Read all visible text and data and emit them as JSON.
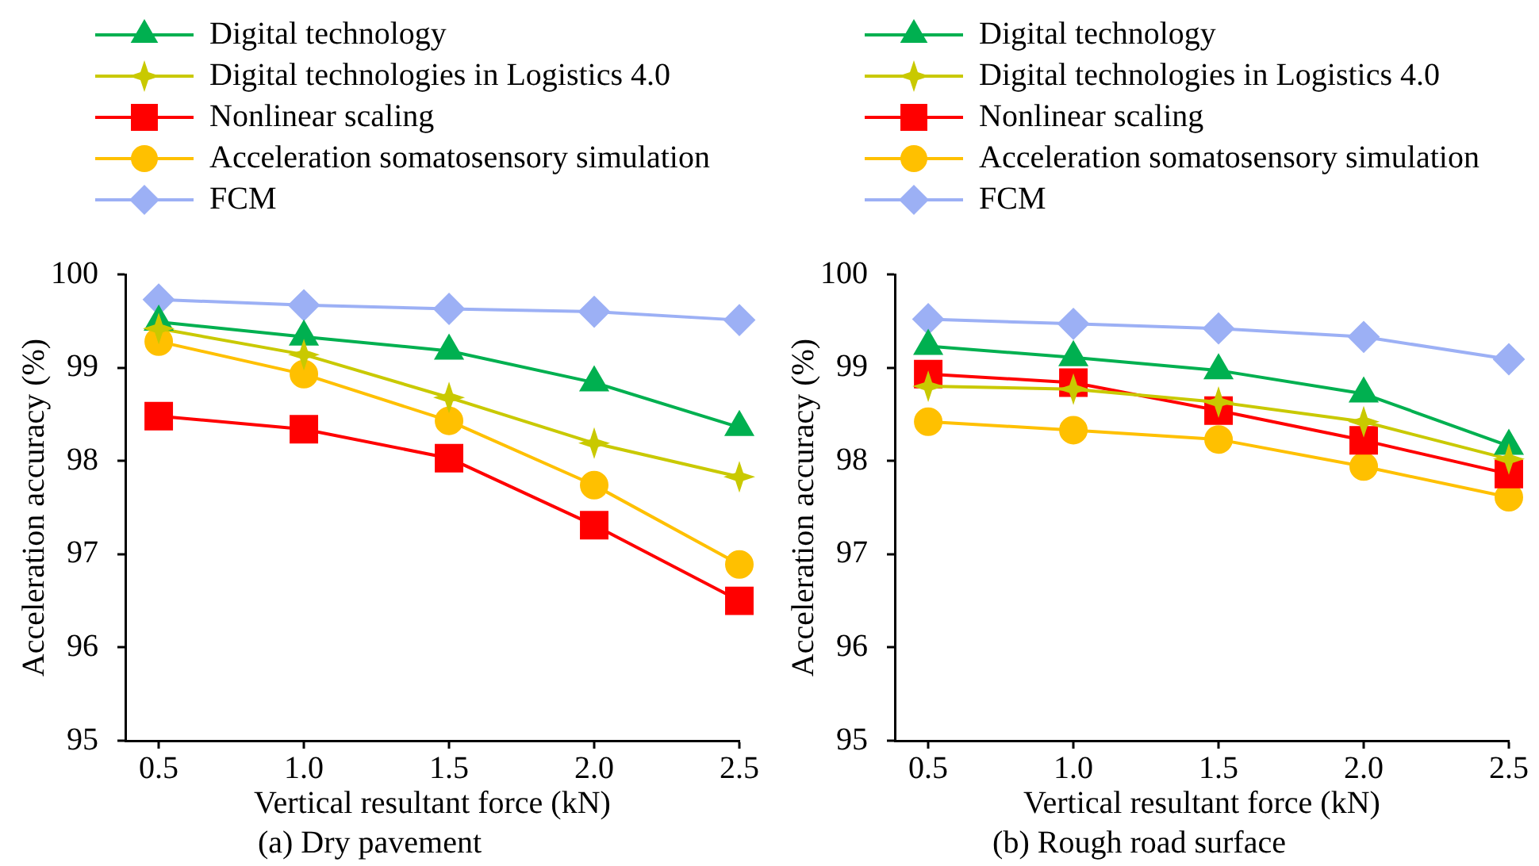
{
  "chart_data": [
    {
      "type": "line",
      "title": "(a) Dry pavement",
      "xlabel": "Vertical resultant force (kN)",
      "ylabel": "Acceleration accuracy (%)",
      "categories": [
        "0.5",
        "1.0",
        "1.5",
        "2.0",
        "2.5"
      ],
      "ylim": [
        95,
        100
      ],
      "yticks": [
        95,
        96,
        97,
        98,
        99,
        100
      ],
      "grid": false,
      "legend": "top left",
      "series": [
        {
          "name": "Digital technology",
          "color": "#00b050",
          "marker": "triangle",
          "values": [
            99.49,
            99.33,
            99.18,
            98.84,
            98.36
          ]
        },
        {
          "name": "Digital technologies in Logistics 4.0",
          "color": "#c9c900",
          "marker": "star",
          "values": [
            99.42,
            99.14,
            98.68,
            98.19,
            97.83
          ]
        },
        {
          "name": "Nonlinear scaling",
          "color": "#ff0000",
          "marker": "square",
          "values": [
            98.48,
            98.34,
            98.03,
            97.31,
            96.5
          ]
        },
        {
          "name": "Acceleration somatosensory simulation",
          "color": "#ffc000",
          "marker": "circle",
          "values": [
            99.28,
            98.93,
            98.43,
            97.74,
            96.89
          ]
        },
        {
          "name": "FCM",
          "color": "#9cb0f5",
          "marker": "diamond",
          "values": [
            99.73,
            99.67,
            99.63,
            99.6,
            99.51
          ]
        }
      ]
    },
    {
      "type": "line",
      "title": "(b) Rough road surface",
      "xlabel": "Vertical resultant force (kN)",
      "ylabel": "Acceleration accuracy (%)",
      "categories": [
        "0.5",
        "1.0",
        "1.5",
        "2.0",
        "2.5"
      ],
      "ylim": [
        95,
        100
      ],
      "yticks": [
        95,
        96,
        97,
        98,
        99,
        100
      ],
      "grid": false,
      "legend": "top left",
      "series": [
        {
          "name": "Digital technology",
          "color": "#00b050",
          "marker": "triangle",
          "values": [
            99.23,
            99.11,
            98.97,
            98.72,
            98.16
          ]
        },
        {
          "name": "Digital technologies in Logistics 4.0",
          "color": "#c9c900",
          "marker": "star",
          "values": [
            98.8,
            98.77,
            98.63,
            98.42,
            98.02
          ]
        },
        {
          "name": "Nonlinear scaling",
          "color": "#ff0000",
          "marker": "square",
          "values": [
            98.93,
            98.84,
            98.54,
            98.22,
            97.86
          ]
        },
        {
          "name": "Acceleration somatosensory simulation",
          "color": "#ffc000",
          "marker": "circle",
          "values": [
            98.42,
            98.33,
            98.23,
            97.94,
            97.61
          ]
        },
        {
          "name": "FCM",
          "color": "#9cb0f5",
          "marker": "diamond",
          "values": [
            99.52,
            99.47,
            99.42,
            99.33,
            99.09
          ]
        }
      ]
    }
  ]
}
